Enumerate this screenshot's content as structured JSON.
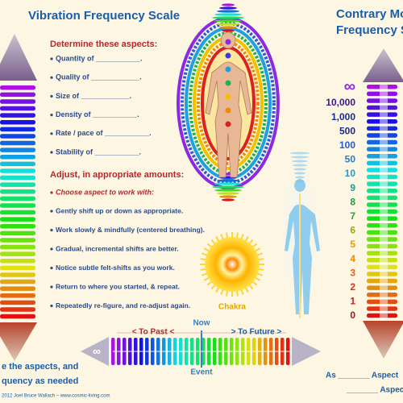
{
  "header": {
    "title": "Vibration Frequency Scale",
    "right_title_1": "Contrary Mo",
    "right_title_2": "Frequency S"
  },
  "aspects": {
    "heading": "Determine these aspects:",
    "items": [
      "Quantity of ___________.",
      "Quality of ____________.",
      "Size of ____________.",
      "Density of ___________.",
      "Rate / pace of ___________.",
      "Stability of ___________."
    ]
  },
  "adjust": {
    "heading": "Adjust, in appropriate amounts:",
    "subheading": "Choose aspect to work with:",
    "items": [
      "Gently shift up or down as appropriate.",
      "Work slowly & mindfully (centered breathing).",
      "Gradual, incremental shifts are better.",
      "Notice subtle felt-shifts as you work.",
      "Return to where you started, & repeat.",
      "Repeatedly re-figure, and re-adjust again."
    ]
  },
  "chakra_label": "Chakra",
  "timeline": {
    "past": "< To Past <",
    "now": "Now",
    "future": "> To Future >",
    "event": "Event"
  },
  "footer": {
    "left_line_1": "e the aspects, and",
    "left_line_2": "quency as needed",
    "copyright": "2012 Joel Bruce Wallach – www.cosmic-living.com",
    "right_line_1": "As _______ Aspect",
    "right_line_2": "_______ Aspect S"
  },
  "scale": {
    "labels": [
      "∞",
      "10,000",
      "1,000",
      "500",
      "100",
      "50",
      "10",
      "9",
      "8",
      "7",
      "6",
      "5",
      "4",
      "3",
      "2",
      "1",
      "0"
    ]
  }
}
